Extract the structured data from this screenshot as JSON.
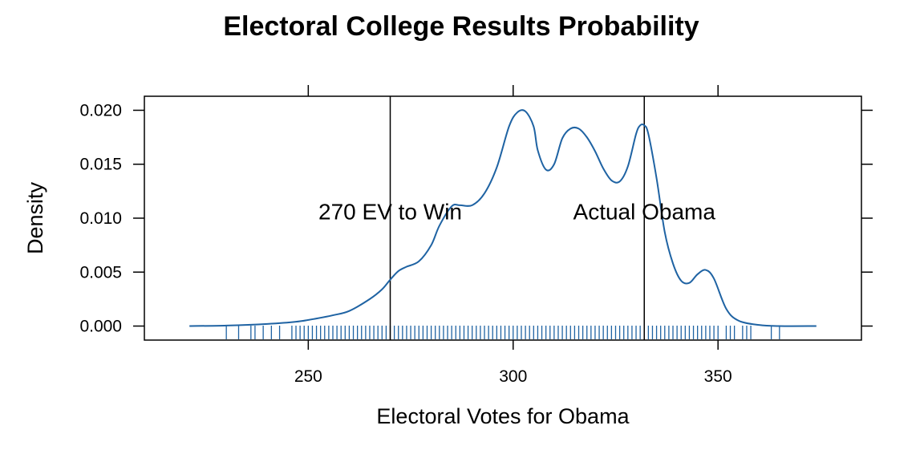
{
  "chart_data": {
    "type": "line",
    "title": "Electoral College Results Probability",
    "xlabel": "Electoral Votes for Obama",
    "ylabel": "Density",
    "xlim": [
      210,
      385
    ],
    "ylim": [
      -0.0013,
      0.0213
    ],
    "x_ticks": [
      250,
      300,
      350
    ],
    "x_tick_labels": [
      "250",
      "300",
      "350"
    ],
    "y_ticks": [
      0.0,
      0.005,
      0.01,
      0.015,
      0.02
    ],
    "y_tick_labels": [
      "0.000",
      "0.005",
      "0.010",
      "0.015",
      "0.020"
    ],
    "grid": false,
    "line_color": "#1f63a3",
    "series": [
      {
        "x": [
          221,
          230,
          240,
          247,
          252,
          256,
          260,
          265,
          268,
          270,
          272,
          274,
          277,
          280,
          282,
          285,
          287,
          290,
          293,
          296,
          299,
          301,
          303,
          305,
          306,
          308,
          310,
          312,
          314,
          316,
          318,
          320,
          322,
          324,
          326,
          328,
          330,
          331,
          332,
          333,
          335,
          337,
          339,
          341,
          343,
          345,
          347,
          349,
          352,
          355,
          360,
          365,
          374
        ],
        "y": [
          0.0,
          5e-05,
          0.0002,
          0.0004,
          0.0007,
          0.001,
          0.0014,
          0.0025,
          0.0034,
          0.0043,
          0.0051,
          0.0055,
          0.006,
          0.0075,
          0.0093,
          0.0111,
          0.0112,
          0.0112,
          0.0123,
          0.0147,
          0.0185,
          0.0198,
          0.0199,
          0.0185,
          0.0163,
          0.0145,
          0.015,
          0.0174,
          0.0183,
          0.0183,
          0.0175,
          0.0162,
          0.0146,
          0.0135,
          0.0134,
          0.0148,
          0.0178,
          0.0186,
          0.0186,
          0.0178,
          0.0137,
          0.0087,
          0.0058,
          0.0042,
          0.004,
          0.0048,
          0.0052,
          0.0044,
          0.0016,
          0.0005,
          0.0001,
          0.0,
          0.0
        ]
      }
    ],
    "rug": [
      230,
      233,
      236,
      237,
      239,
      241,
      243,
      246,
      247,
      248,
      249,
      250,
      251,
      252,
      253,
      254,
      255,
      256,
      257,
      258,
      259,
      260,
      261,
      262,
      263,
      264,
      265,
      266,
      267,
      268,
      269,
      270,
      271,
      272,
      273,
      274,
      275,
      276,
      277,
      278,
      279,
      280,
      281,
      282,
      283,
      284,
      285,
      286,
      287,
      288,
      289,
      290,
      291,
      292,
      293,
      294,
      295,
      296,
      297,
      298,
      299,
      300,
      301,
      302,
      303,
      304,
      305,
      306,
      307,
      308,
      309,
      310,
      311,
      312,
      313,
      314,
      315,
      316,
      317,
      318,
      319,
      320,
      321,
      322,
      323,
      324,
      325,
      326,
      327,
      328,
      329,
      330,
      331,
      332,
      333,
      334,
      335,
      336,
      337,
      338,
      339,
      340,
      341,
      342,
      343,
      344,
      345,
      346,
      347,
      348,
      349,
      350,
      352,
      353,
      354,
      356,
      357,
      358,
      363,
      365
    ],
    "annotations": [
      {
        "x": 270,
        "label": "270 EV to Win"
      },
      {
        "x": 332,
        "label": "Actual Obama"
      }
    ],
    "annotation_text_y": 0.0099
  }
}
